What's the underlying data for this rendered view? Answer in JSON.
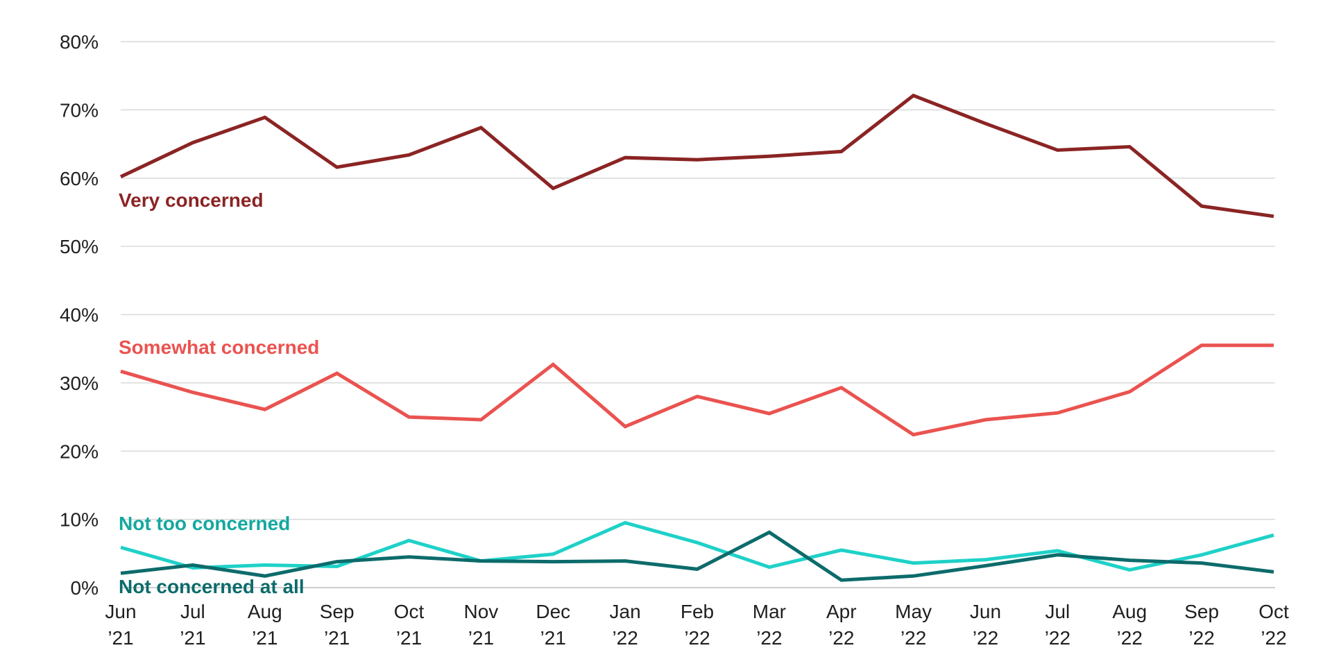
{
  "chart_data": {
    "type": "line",
    "title": "",
    "xlabel": "",
    "ylabel": "",
    "ylim": [
      0,
      80
    ],
    "yticks": [
      0,
      10,
      20,
      30,
      40,
      50,
      60,
      70,
      80
    ],
    "ytick_labels": [
      "0%",
      "10%",
      "20%",
      "30%",
      "40%",
      "50%",
      "60%",
      "70%",
      "80%"
    ],
    "grid": true,
    "legend": "inline labels",
    "categories": [
      [
        "Jun",
        "’21"
      ],
      [
        "Jul",
        "’21"
      ],
      [
        "Aug",
        "’21"
      ],
      [
        "Sep",
        "’21"
      ],
      [
        "Oct",
        "’21"
      ],
      [
        "Nov",
        "’21"
      ],
      [
        "Dec",
        "’21"
      ],
      [
        "Jan",
        "’22"
      ],
      [
        "Feb",
        "’22"
      ],
      [
        "Mar",
        "’22"
      ],
      [
        "Apr",
        "’22"
      ],
      [
        "May",
        "’22"
      ],
      [
        "Jun",
        "’22"
      ],
      [
        "Jul",
        "’22"
      ],
      [
        "Aug",
        "’22"
      ],
      [
        "Sep",
        "’22"
      ],
      [
        "Oct",
        "’22"
      ]
    ],
    "series": [
      {
        "name": "Very concerned",
        "color": "#8b2424",
        "values": [
          60.2,
          65.2,
          68.9,
          61.6,
          63.4,
          67.4,
          58.5,
          63.0,
          62.7,
          63.2,
          63.9,
          72.1,
          68.0,
          64.1,
          64.6,
          55.9,
          54.4
        ]
      },
      {
        "name": "Somewhat concerned",
        "color": "#ea5350",
        "values": [
          31.7,
          28.6,
          26.1,
          31.4,
          25.0,
          24.6,
          32.7,
          23.6,
          28.0,
          25.5,
          29.3,
          22.4,
          24.6,
          25.6,
          28.7,
          35.5,
          35.5
        ]
      },
      {
        "name": "Not too concerned",
        "color": "#1fd1c8",
        "values": [
          5.9,
          2.9,
          3.3,
          3.1,
          6.9,
          3.9,
          4.9,
          9.5,
          6.6,
          3.0,
          5.5,
          3.6,
          4.1,
          5.4,
          2.6,
          4.8,
          7.7
        ]
      },
      {
        "name": "Not concerned at all",
        "color": "#0d6b6b",
        "values": [
          2.1,
          3.3,
          1.7,
          3.8,
          4.5,
          3.9,
          3.8,
          3.9,
          2.7,
          8.1,
          1.1,
          1.7,
          3.2,
          4.8,
          4.0,
          3.6,
          2.3
        ]
      }
    ],
    "series_labels": [
      {
        "text": "Very concerned",
        "color": "#8b2424"
      },
      {
        "text": "Somewhat concerned",
        "color": "#ea5350"
      },
      {
        "text": "Not too concerned",
        "color": "#14a89f"
      },
      {
        "text": "Not concerned at all",
        "color": "#0d6b6b"
      }
    ]
  }
}
